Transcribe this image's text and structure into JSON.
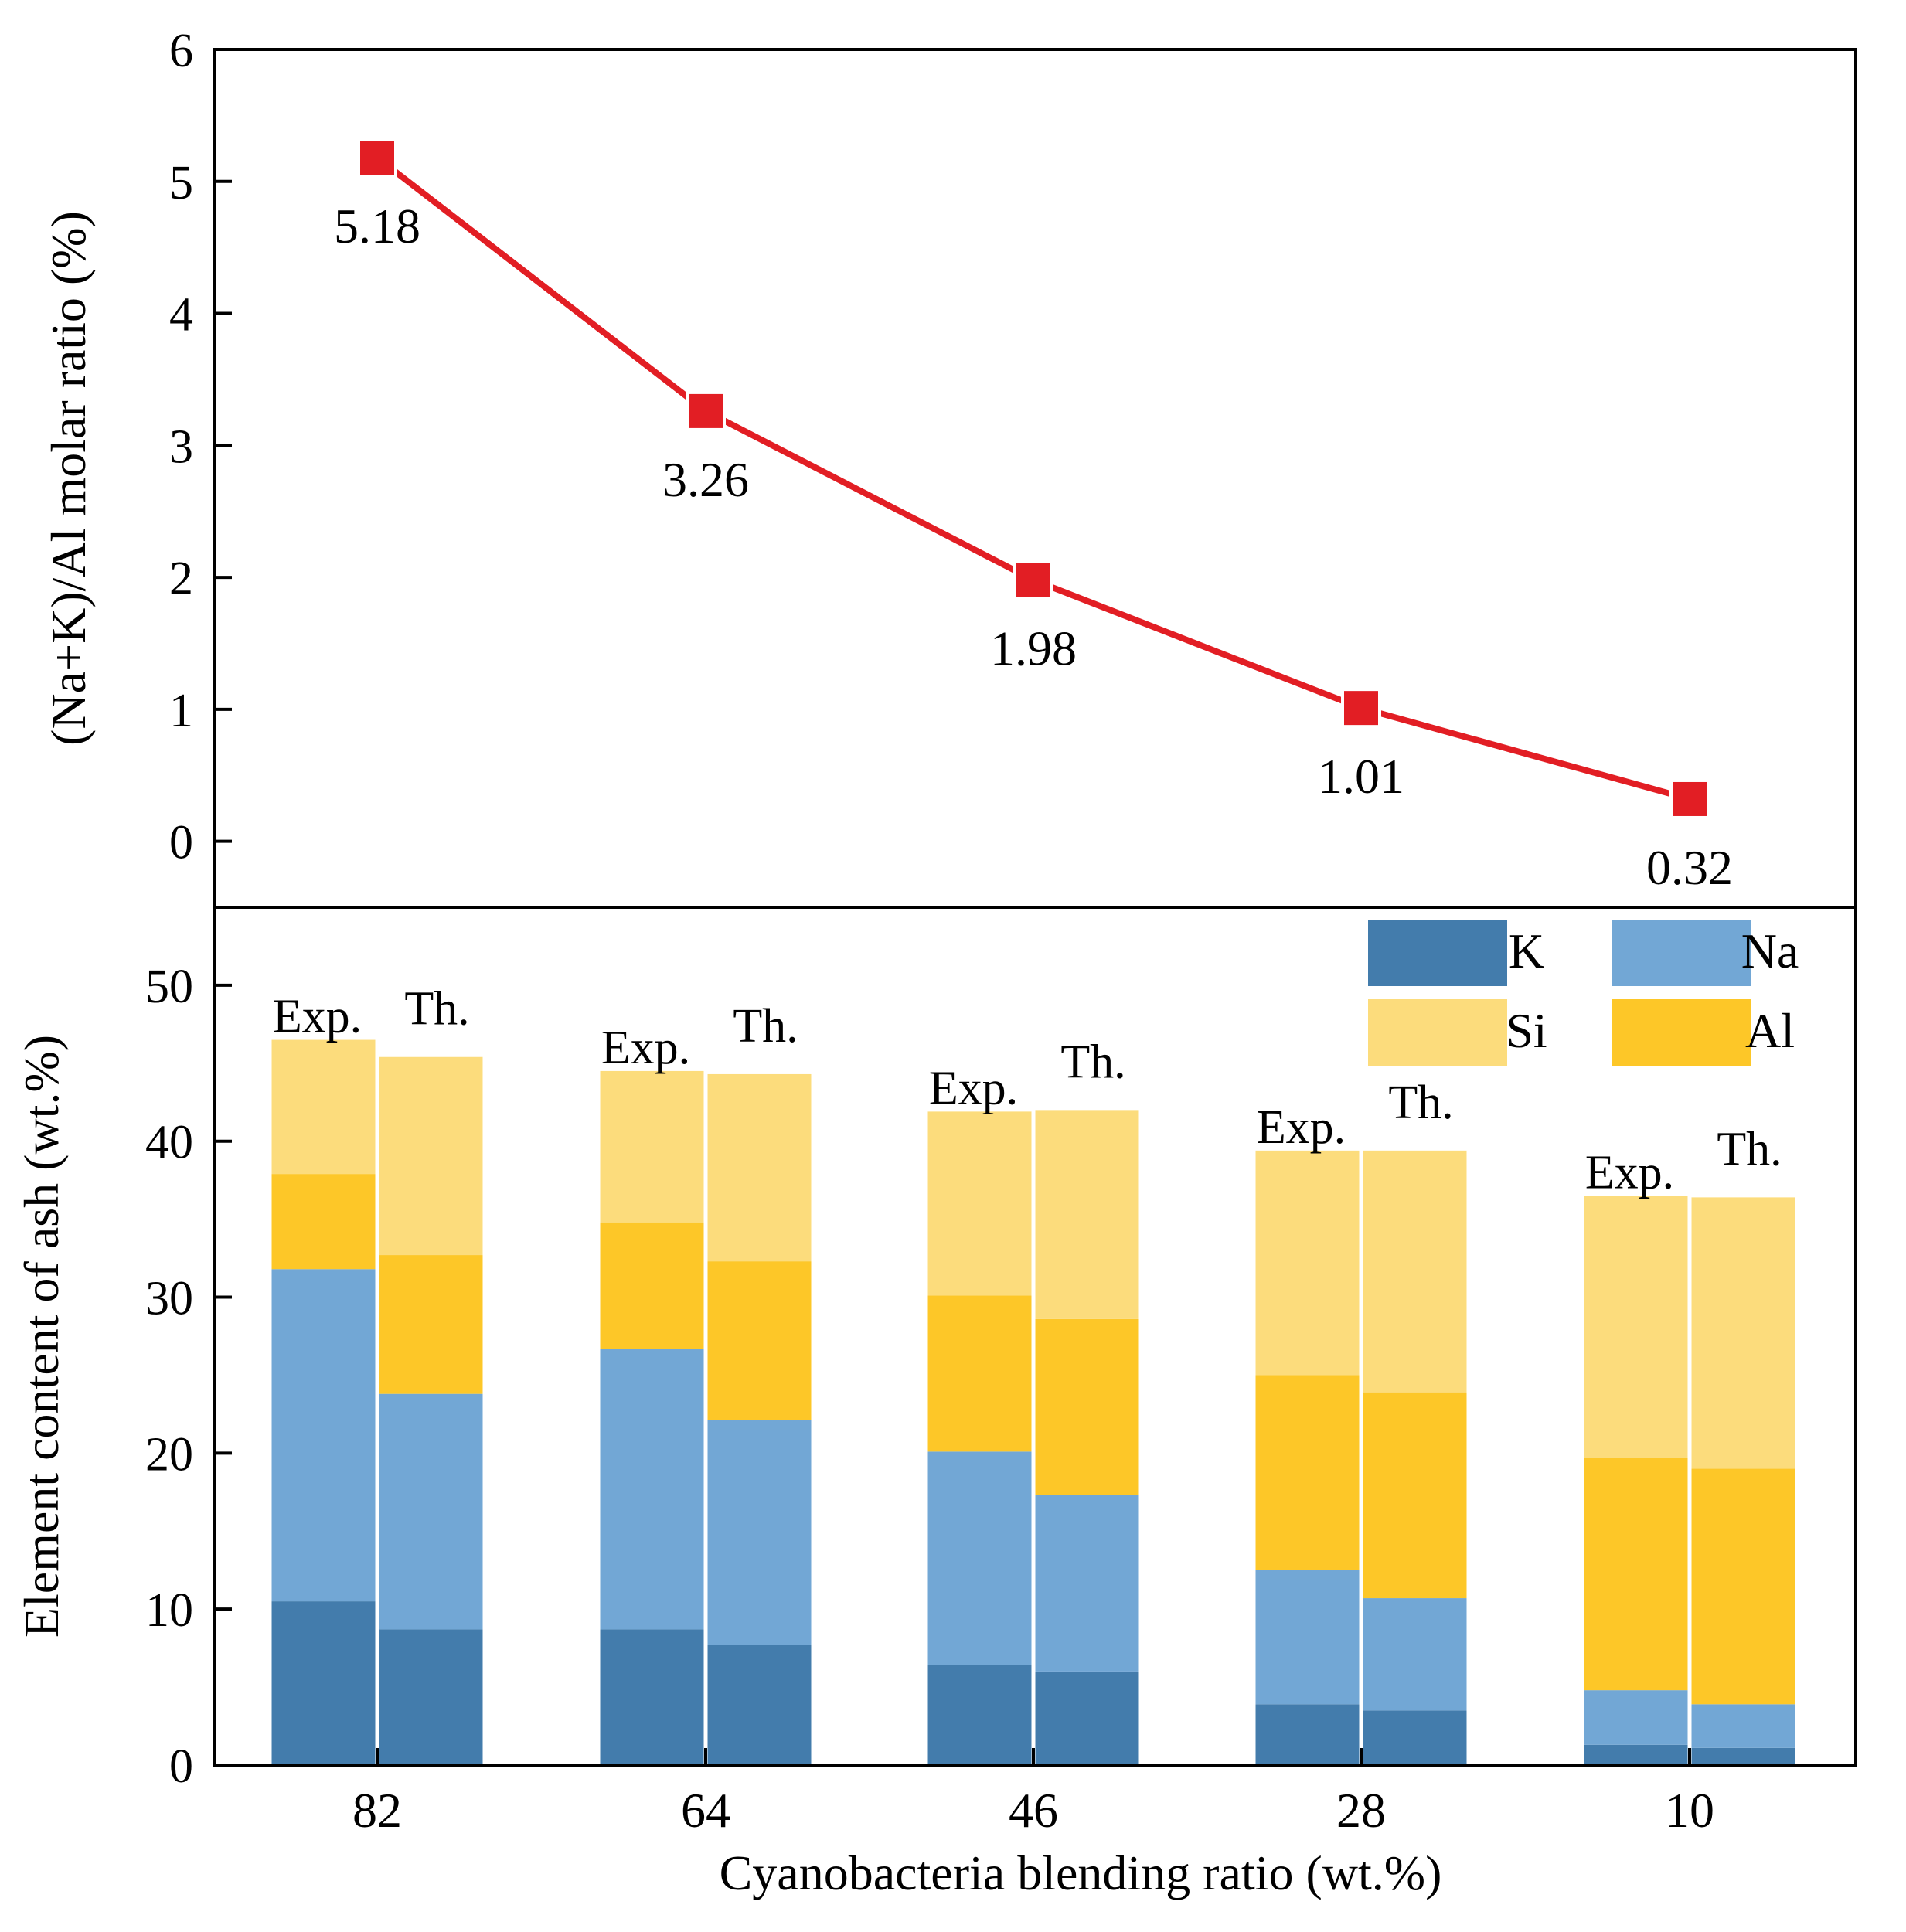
{
  "colors": {
    "K": "#437CAC",
    "Na": "#72A7D5",
    "Si": "#FCDC7C",
    "Al": "#FDC728",
    "line": "#E21E24",
    "marker": "#E21E24",
    "axis": "#000000"
  },
  "x_axis": {
    "label": "Cyanobacteria blending ratio (wt.%)",
    "categories": [
      "82",
      "64",
      "46",
      "28",
      "10"
    ]
  },
  "chart_data": [
    {
      "type": "line",
      "ylabel": "(Na+K)/Al molar ratio (%)",
      "ylim": [
        -0.5,
        6
      ],
      "yticks": [
        0,
        1,
        2,
        3,
        4,
        5,
        6
      ],
      "categories": [
        "82",
        "64",
        "46",
        "28",
        "10"
      ],
      "values": [
        5.18,
        3.26,
        1.98,
        1.01,
        0.32
      ],
      "point_labels": [
        "5.18",
        "3.26",
        "1.98",
        "1.01",
        "0.32"
      ]
    },
    {
      "type": "bar",
      "stacked": true,
      "ylabel": "Element content of ash (wt.%)",
      "ylim": [
        0,
        55
      ],
      "yticks": [
        0,
        10,
        20,
        30,
        40,
        50
      ],
      "categories": [
        "82",
        "64",
        "46",
        "28",
        "10"
      ],
      "bar_labels": [
        "Exp.",
        "Th."
      ],
      "stack_order": [
        "K",
        "Na",
        "Al",
        "Si"
      ],
      "legend": [
        {
          "key": "K",
          "label": "K"
        },
        {
          "key": "Na",
          "label": "Na"
        },
        {
          "key": "Si",
          "label": "Si"
        },
        {
          "key": "Al",
          "label": "Al"
        }
      ],
      "legend_position": "top-right",
      "groups": [
        {
          "category": "82",
          "exp": {
            "K": 10.5,
            "Na": 21.3,
            "Al": 6.1,
            "Si": 8.6
          },
          "th": {
            "K": 8.7,
            "Na": 15.1,
            "Al": 8.9,
            "Si": 12.7
          }
        },
        {
          "category": "64",
          "exp": {
            "K": 8.7,
            "Na": 18.0,
            "Al": 8.1,
            "Si": 9.7
          },
          "th": {
            "K": 7.7,
            "Na": 14.4,
            "Al": 10.2,
            "Si": 12.0
          }
        },
        {
          "category": "46",
          "exp": {
            "K": 6.4,
            "Na": 13.7,
            "Al": 10.0,
            "Si": 11.8
          },
          "th": {
            "K": 6.0,
            "Na": 11.3,
            "Al": 11.3,
            "Si": 13.4
          }
        },
        {
          "category": "28",
          "exp": {
            "K": 3.9,
            "Na": 8.6,
            "Al": 12.5,
            "Si": 14.4
          },
          "th": {
            "K": 3.5,
            "Na": 7.2,
            "Al": 13.2,
            "Si": 15.5
          }
        },
        {
          "category": "10",
          "exp": {
            "K": 1.3,
            "Na": 3.5,
            "Al": 14.9,
            "Si": 16.8
          },
          "th": {
            "K": 1.1,
            "Na": 2.8,
            "Al": 15.1,
            "Si": 17.4
          }
        }
      ]
    }
  ]
}
